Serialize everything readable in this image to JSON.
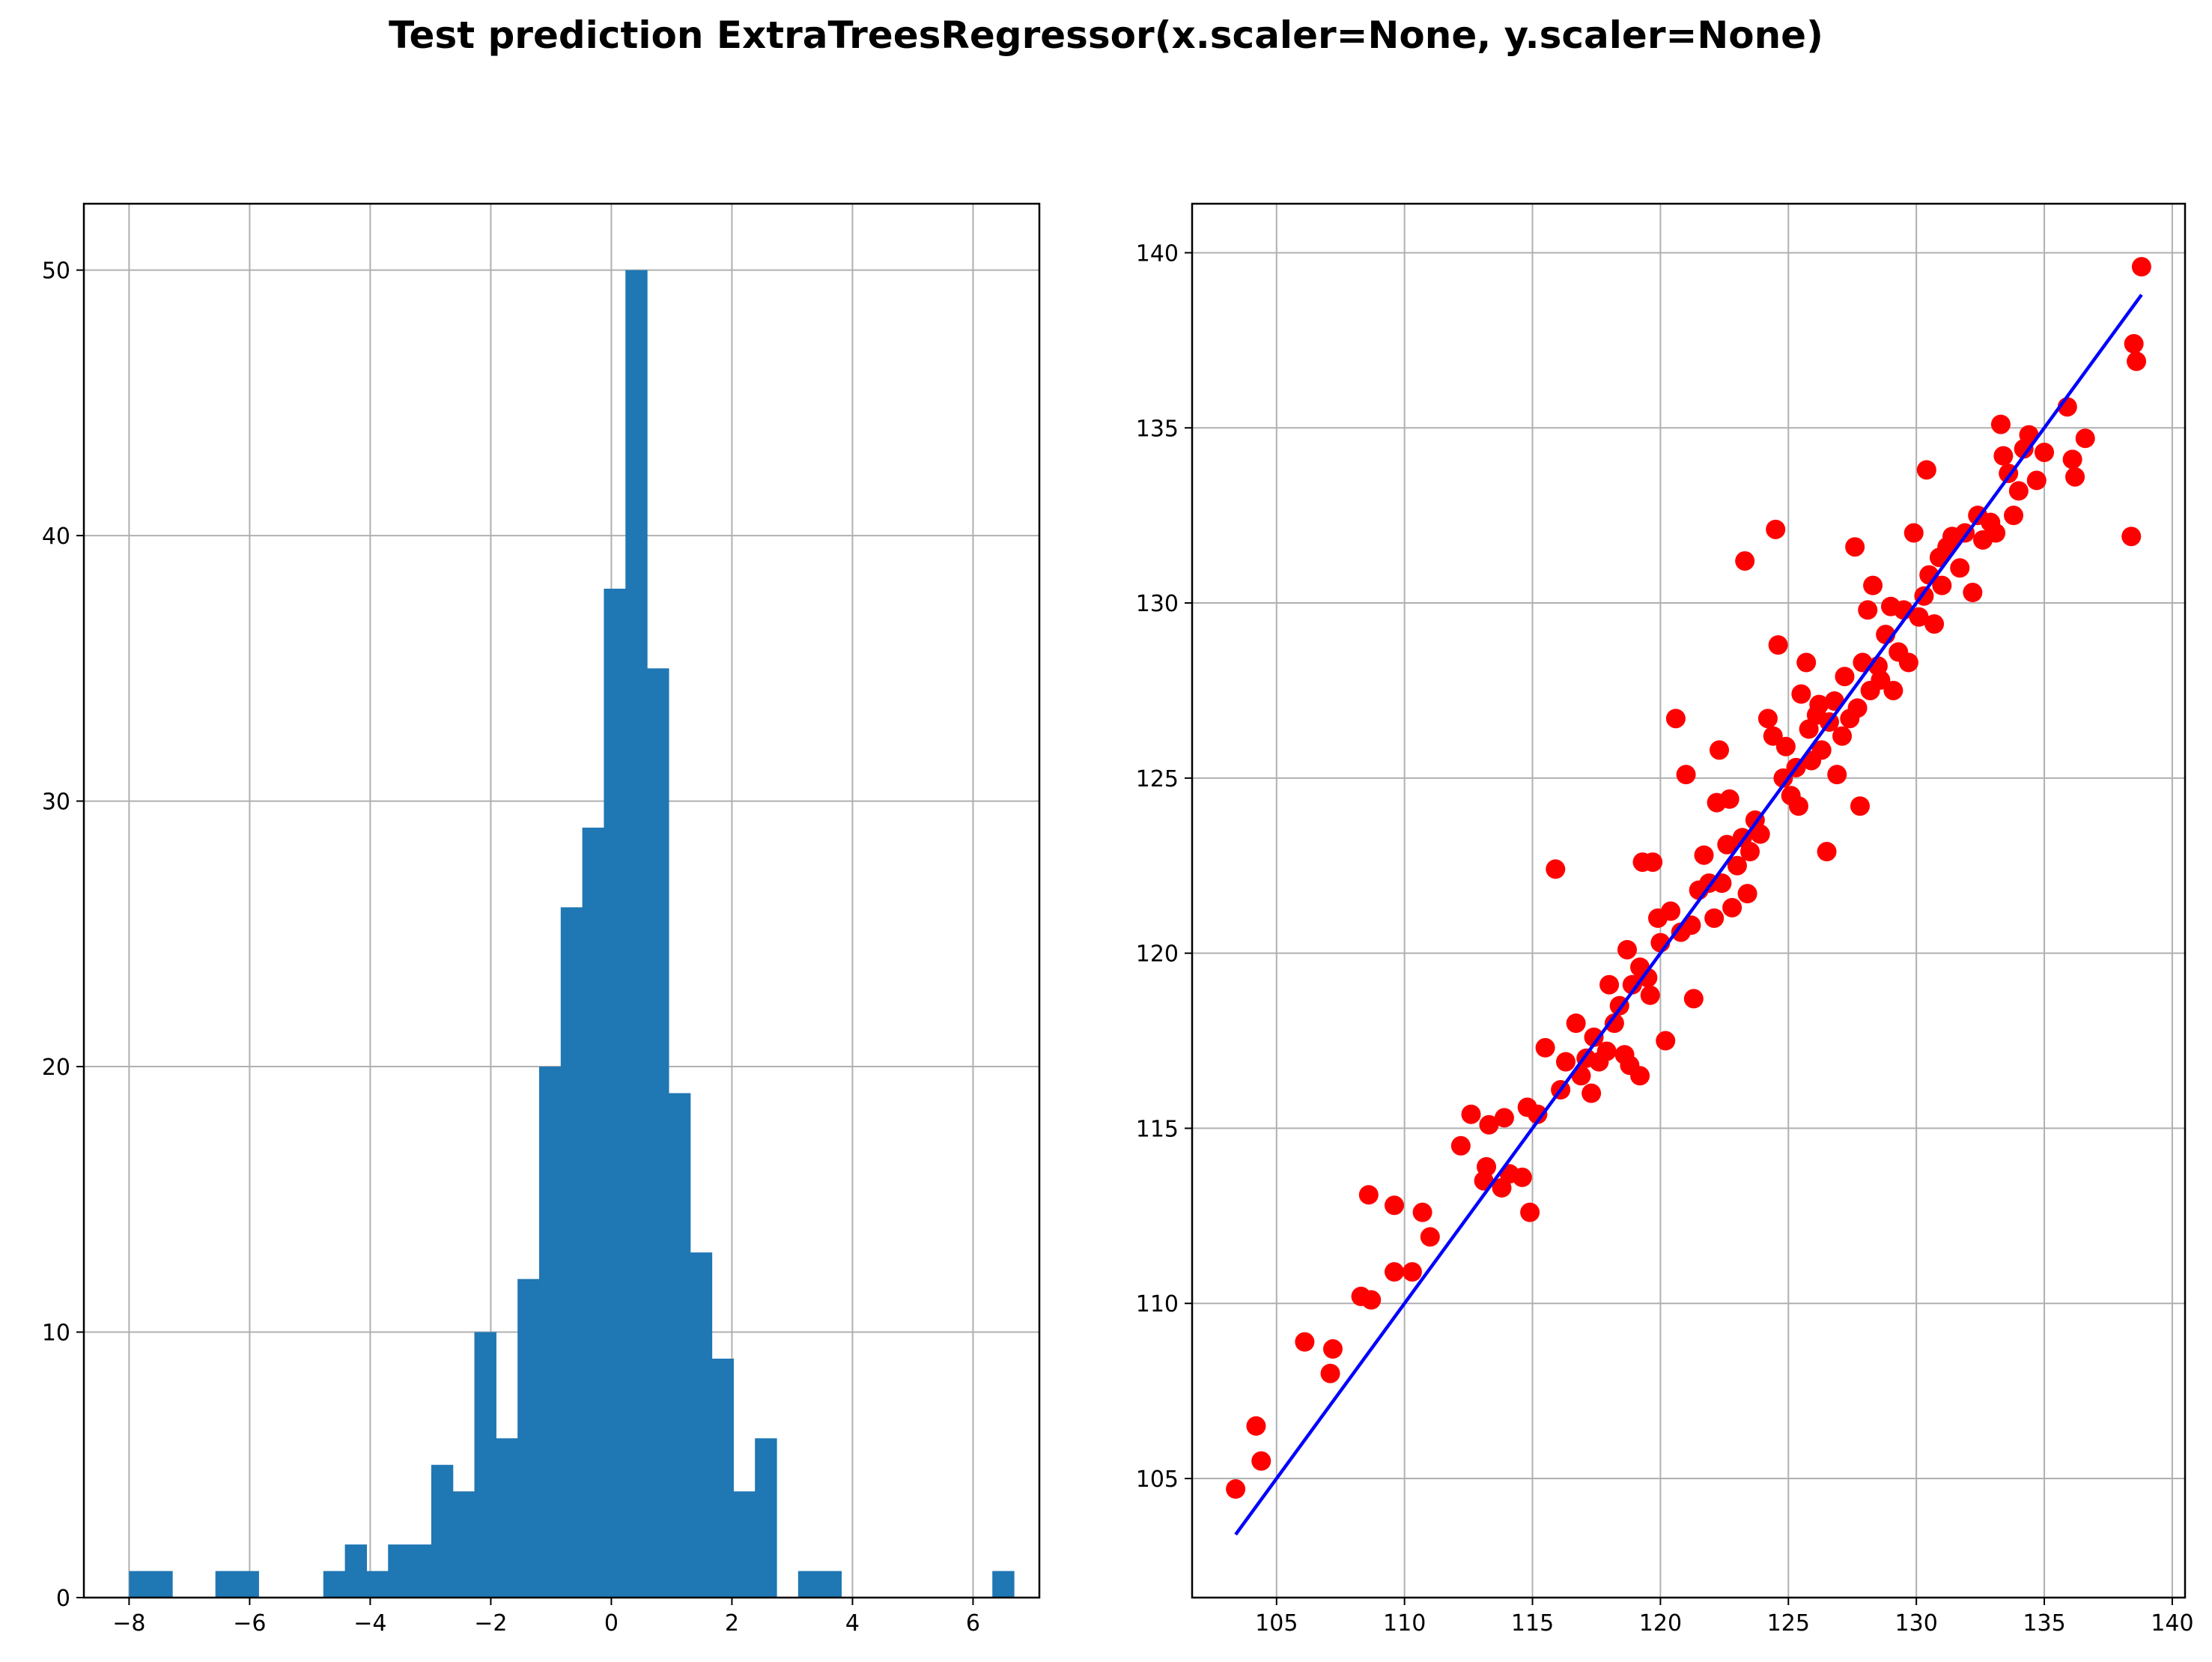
{
  "figure": {
    "title": "Test prediction ExtraTreesRegressor(x.scaler=None, y.scaler=None)"
  },
  "colors": {
    "hist_bar": "#1f77b4",
    "scatter_point": "#ff0000",
    "fit_line": "#0000ff",
    "grid": "#b0b0b0"
  },
  "chart_data": [
    {
      "type": "bar",
      "subtype": "histogram",
      "grid": true,
      "xlim": [
        -8.75,
        7.1
      ],
      "ylim": [
        0,
        52.5
      ],
      "xticks": [
        -8,
        -6,
        -4,
        -2,
        0,
        2,
        4,
        6
      ],
      "xtick_labels": [
        "−8",
        "−6",
        "−4",
        "−2",
        "0",
        "2",
        "4",
        "6"
      ],
      "yticks": [
        0,
        10,
        20,
        30,
        40,
        50
      ],
      "ytick_labels": [
        "0",
        "10",
        "20",
        "30",
        "40",
        "50"
      ],
      "bin_start": -8.0,
      "bin_width": 0.358,
      "counts": [
        1,
        1,
        0,
        0,
        1,
        1,
        0,
        0,
        0,
        1,
        2,
        1,
        2,
        2,
        5,
        4,
        10,
        6,
        12,
        20,
        26,
        29,
        38,
        50,
        35,
        19,
        13,
        9,
        4,
        6,
        0,
        1,
        1,
        0,
        0,
        0,
        0,
        0,
        0,
        0,
        1
      ]
    },
    {
      "type": "scatter",
      "grid": true,
      "xlim": [
        101.7,
        140.5
      ],
      "ylim": [
        101.6,
        141.4
      ],
      "xticks": [
        105,
        110,
        115,
        120,
        125,
        130,
        135,
        140
      ],
      "xtick_labels": [
        "105",
        "110",
        "115",
        "120",
        "125",
        "130",
        "135",
        "140"
      ],
      "yticks": [
        105,
        110,
        115,
        120,
        125,
        130,
        135,
        140
      ],
      "ytick_labels": [
        "105",
        "110",
        "115",
        "120",
        "125",
        "130",
        "135",
        "140"
      ],
      "fit_line": {
        "x": [
          103.4,
          138.8
        ],
        "y": [
          103.4,
          138.8
        ]
      },
      "points": [
        [
          103.4,
          104.7
        ],
        [
          104.2,
          106.5
        ],
        [
          104.4,
          105.5
        ],
        [
          106.1,
          108.9
        ],
        [
          107.1,
          108.0
        ],
        [
          107.2,
          108.7
        ],
        [
          108.3,
          110.2
        ],
        [
          108.6,
          113.1
        ],
        [
          108.7,
          110.1
        ],
        [
          109.6,
          110.9
        ],
        [
          109.6,
          112.8
        ],
        [
          110.3,
          110.9
        ],
        [
          110.7,
          112.6
        ],
        [
          111.0,
          111.9
        ],
        [
          112.2,
          114.5
        ],
        [
          112.6,
          115.4
        ],
        [
          113.1,
          113.5
        ],
        [
          113.2,
          113.9
        ],
        [
          113.3,
          115.1
        ],
        [
          113.8,
          113.3
        ],
        [
          113.9,
          115.3
        ],
        [
          114.1,
          113.7
        ],
        [
          114.6,
          113.6
        ],
        [
          114.8,
          115.6
        ],
        [
          114.9,
          112.6
        ],
        [
          115.2,
          115.4
        ],
        [
          115.5,
          117.3
        ],
        [
          115.9,
          122.4
        ],
        [
          116.1,
          116.1
        ],
        [
          116.3,
          116.9
        ],
        [
          116.7,
          118.0
        ],
        [
          116.9,
          116.5
        ],
        [
          117.1,
          117.0
        ],
        [
          117.3,
          116.0
        ],
        [
          117.4,
          117.6
        ],
        [
          117.6,
          116.9
        ],
        [
          117.9,
          117.2
        ],
        [
          118.0,
          119.1
        ],
        [
          118.2,
          118.0
        ],
        [
          118.4,
          118.5
        ],
        [
          118.6,
          117.1
        ],
        [
          118.7,
          120.1
        ],
        [
          118.8,
          116.8
        ],
        [
          118.9,
          119.1
        ],
        [
          119.2,
          119.6
        ],
        [
          119.2,
          116.5
        ],
        [
          119.3,
          122.6
        ],
        [
          119.5,
          119.3
        ],
        [
          119.6,
          118.8
        ],
        [
          119.7,
          122.6
        ],
        [
          119.9,
          121.0
        ],
        [
          120.0,
          120.3
        ],
        [
          120.2,
          117.5
        ],
        [
          120.4,
          121.2
        ],
        [
          120.6,
          126.7
        ],
        [
          120.8,
          120.6
        ],
        [
          121.0,
          125.1
        ],
        [
          121.2,
          120.8
        ],
        [
          121.3,
          118.7
        ],
        [
          121.5,
          121.8
        ],
        [
          121.7,
          122.8
        ],
        [
          121.9,
          122.0
        ],
        [
          122.1,
          121.0
        ],
        [
          122.2,
          124.3
        ],
        [
          122.3,
          125.8
        ],
        [
          122.4,
          122.0
        ],
        [
          122.6,
          123.1
        ],
        [
          122.7,
          124.4
        ],
        [
          122.8,
          121.3
        ],
        [
          123.0,
          122.5
        ],
        [
          123.2,
          123.3
        ],
        [
          123.3,
          131.2
        ],
        [
          123.4,
          121.7
        ],
        [
          123.5,
          122.9
        ],
        [
          123.7,
          123.8
        ],
        [
          123.9,
          123.4
        ],
        [
          124.2,
          126.7
        ],
        [
          124.4,
          126.2
        ],
        [
          124.5,
          132.1
        ],
        [
          124.6,
          128.8
        ],
        [
          124.8,
          125.0
        ],
        [
          124.9,
          125.9
        ],
        [
          125.1,
          124.5
        ],
        [
          125.3,
          125.3
        ],
        [
          125.4,
          124.2
        ],
        [
          125.5,
          127.4
        ],
        [
          125.7,
          128.3
        ],
        [
          125.8,
          126.4
        ],
        [
          125.9,
          125.5
        ],
        [
          126.1,
          126.8
        ],
        [
          126.2,
          127.1
        ],
        [
          126.3,
          125.8
        ],
        [
          126.5,
          122.9
        ],
        [
          126.6,
          126.6
        ],
        [
          126.8,
          127.2
        ],
        [
          126.9,
          125.1
        ],
        [
          127.1,
          126.2
        ],
        [
          127.2,
          127.9
        ],
        [
          127.4,
          126.7
        ],
        [
          127.6,
          131.6
        ],
        [
          127.7,
          127.0
        ],
        [
          127.8,
          124.2
        ],
        [
          127.9,
          128.3
        ],
        [
          128.1,
          129.8
        ],
        [
          128.2,
          127.5
        ],
        [
          128.3,
          130.5
        ],
        [
          128.5,
          128.2
        ],
        [
          128.6,
          127.8
        ],
        [
          128.8,
          129.1
        ],
        [
          129.0,
          129.9
        ],
        [
          129.1,
          127.5
        ],
        [
          129.3,
          128.6
        ],
        [
          129.5,
          129.8
        ],
        [
          129.7,
          128.3
        ],
        [
          129.9,
          132.0
        ],
        [
          130.1,
          129.6
        ],
        [
          130.3,
          130.2
        ],
        [
          130.4,
          133.8
        ],
        [
          130.5,
          130.8
        ],
        [
          130.7,
          129.4
        ],
        [
          130.9,
          131.3
        ],
        [
          131.0,
          130.5
        ],
        [
          131.2,
          131.6
        ],
        [
          131.4,
          131.9
        ],
        [
          131.7,
          131.0
        ],
        [
          131.9,
          132.0
        ],
        [
          132.2,
          130.3
        ],
        [
          132.4,
          132.5
        ],
        [
          132.6,
          131.8
        ],
        [
          132.9,
          132.3
        ],
        [
          133.1,
          132.0
        ],
        [
          133.3,
          135.1
        ],
        [
          133.4,
          134.2
        ],
        [
          133.6,
          133.7
        ],
        [
          133.8,
          132.5
        ],
        [
          134.0,
          133.2
        ],
        [
          134.2,
          134.4
        ],
        [
          134.4,
          134.8
        ],
        [
          134.7,
          133.5
        ],
        [
          135.0,
          134.3
        ],
        [
          135.9,
          135.6
        ],
        [
          136.1,
          134.1
        ],
        [
          136.2,
          133.6
        ],
        [
          136.6,
          134.7
        ],
        [
          138.4,
          131.9
        ],
        [
          138.5,
          137.4
        ],
        [
          138.6,
          136.9
        ],
        [
          138.8,
          139.6
        ]
      ]
    }
  ]
}
